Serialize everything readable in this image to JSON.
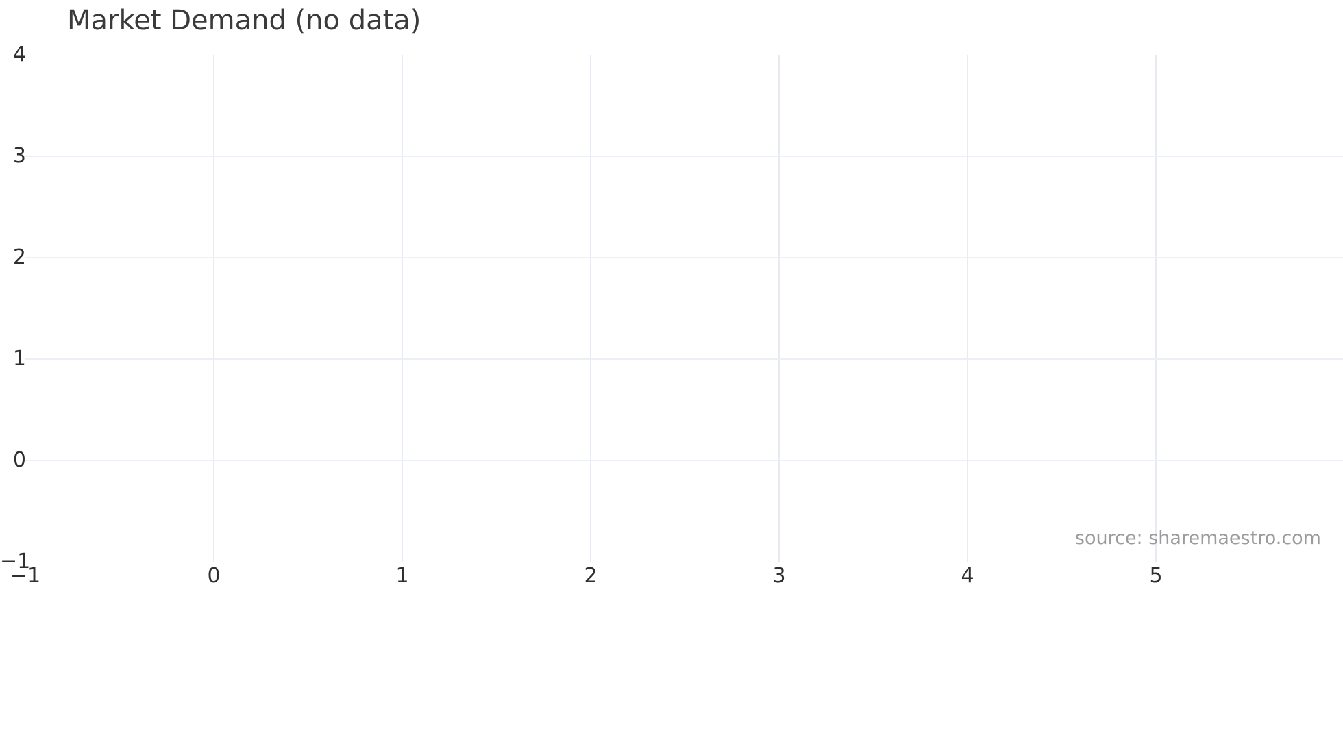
{
  "chart_data": {
    "type": "line",
    "title": "Market Demand (no data)",
    "series": [],
    "x_axis": {
      "tick_values": [
        -1,
        0,
        1,
        2,
        3,
        4,
        5
      ],
      "tick_labels": [
        "−1",
        "0",
        "1",
        "2",
        "3",
        "4",
        "5"
      ],
      "range": [
        -1,
        6
      ]
    },
    "y_axis": {
      "tick_values": [
        4,
        3,
        2,
        1,
        0,
        -1
      ],
      "tick_labels": [
        "4",
        "3",
        "2",
        "1",
        "0",
        "−1"
      ],
      "range": [
        -1,
        4
      ]
    },
    "grid": "on",
    "legend": "none",
    "annotations": [
      {
        "text": "source: sharemaestro.com",
        "position": "bottom-right"
      }
    ]
  },
  "colors": {
    "background": "#ffffff",
    "grid_vertical": "#e7eaf3",
    "grid_horizontal": "#edeff6",
    "title_text": "#3a3a3a",
    "tick_text": "#2f2f2f",
    "source_text": "#9b9b9b"
  }
}
